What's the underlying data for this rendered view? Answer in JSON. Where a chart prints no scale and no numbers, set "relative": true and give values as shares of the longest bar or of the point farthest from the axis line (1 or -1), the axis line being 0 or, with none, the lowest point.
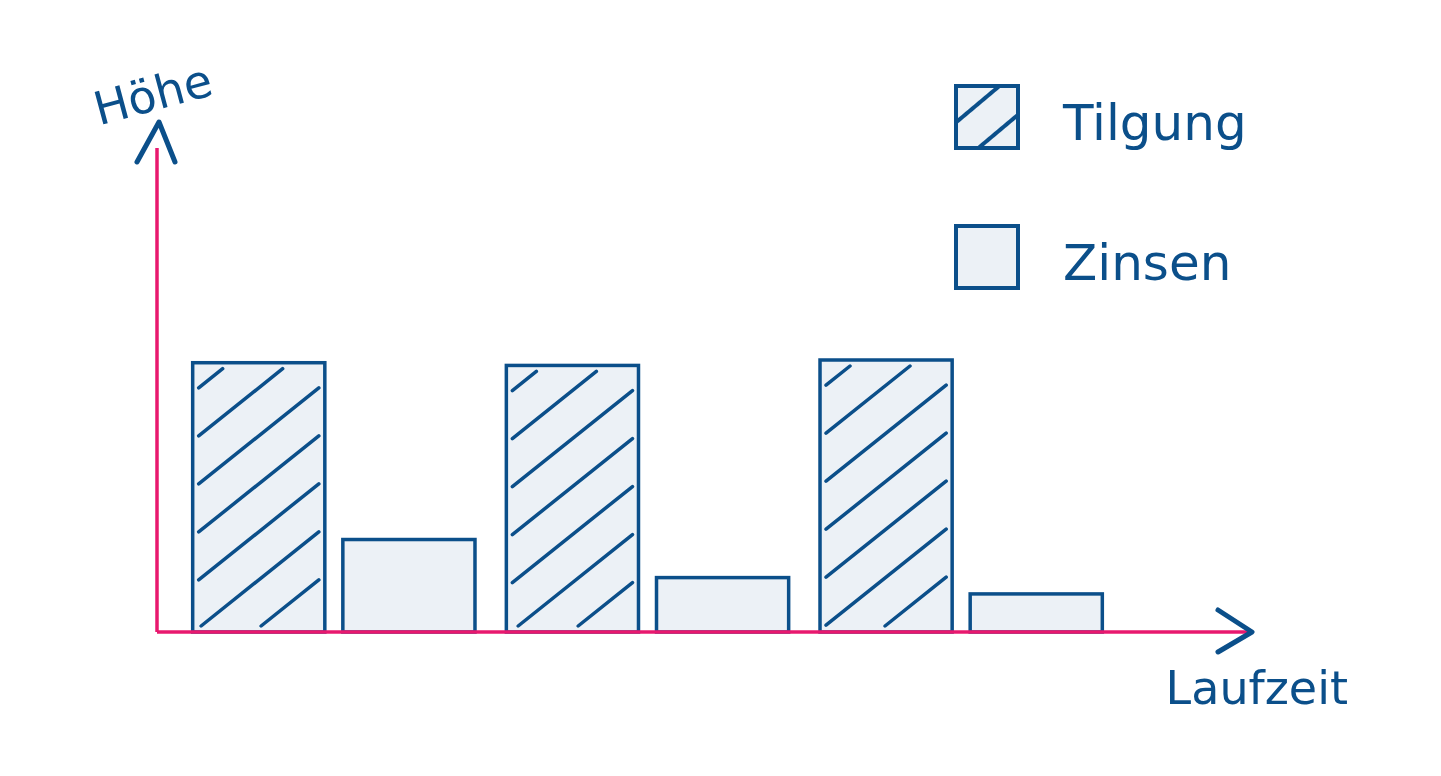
{
  "chart_data": {
    "type": "bar",
    "xlabel": "Laufzeit",
    "ylabel": "Höhe",
    "relative": true,
    "categories": [
      null,
      null,
      null
    ],
    "legend": "top right",
    "series": [
      {
        "name": "Tilgung",
        "color": "#0b4f8a",
        "values": [
          0.99,
          0.98,
          1
        ]
      },
      {
        "name": "Zinsen",
        "color": "#0b4f8a",
        "values": [
          0.34,
          0.2,
          0.14
        ]
      }
    ]
  }
}
